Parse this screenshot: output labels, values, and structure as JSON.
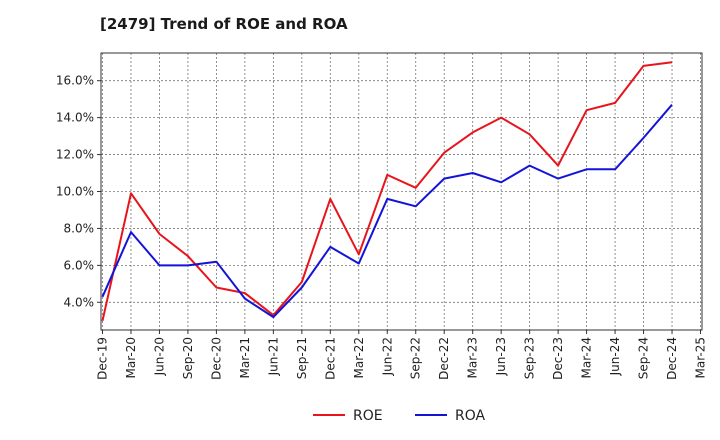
{
  "chart_data": {
    "type": "line",
    "title": "[2479]  Trend of ROE and ROA",
    "xlabel": "",
    "ylabel": "",
    "categories": [
      "Dec-19",
      "Mar-20",
      "Jun-20",
      "Sep-20",
      "Dec-20",
      "Mar-21",
      "Jun-21",
      "Sep-21",
      "Dec-21",
      "Mar-22",
      "Jun-22",
      "Sep-22",
      "Dec-22",
      "Mar-23",
      "Jun-23",
      "Sep-23",
      "Dec-23",
      "Mar-24",
      "Jun-24",
      "Sep-24",
      "Dec-24",
      "Mar-25"
    ],
    "yticks": [
      "4.0%",
      "6.0%",
      "8.0%",
      "10.0%",
      "12.0%",
      "14.0%",
      "16.0%"
    ],
    "ylim": [
      2.5,
      17.5
    ],
    "grid": true,
    "legend_position": "bottom-center",
    "series": [
      {
        "name": "ROE",
        "color": "#e8141b",
        "values": [
          3.0,
          9.9,
          7.7,
          6.5,
          4.8,
          4.5,
          3.3,
          5.1,
          9.6,
          6.6,
          10.9,
          10.2,
          12.1,
          13.2,
          14.0,
          13.1,
          11.4,
          14.4,
          14.8,
          16.8,
          17.0,
          null
        ]
      },
      {
        "name": "ROA",
        "color": "#1414d8",
        "values": [
          4.3,
          7.8,
          6.0,
          6.0,
          6.2,
          4.2,
          3.2,
          4.8,
          7.0,
          6.1,
          9.6,
          9.2,
          10.7,
          11.0,
          10.5,
          11.4,
          10.7,
          11.2,
          11.2,
          12.9,
          14.7,
          null
        ]
      }
    ]
  }
}
